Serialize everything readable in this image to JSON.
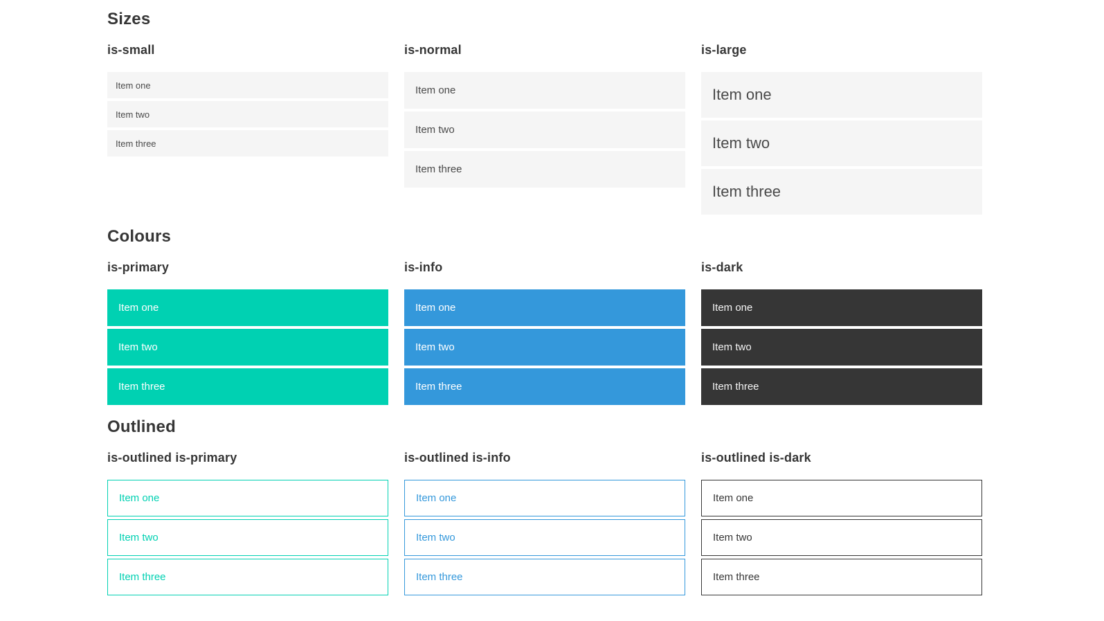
{
  "items": [
    "Item one",
    "Item two",
    "Item three"
  ],
  "sections": [
    {
      "title": "Sizes",
      "groups": [
        {
          "label": "is-small"
        },
        {
          "label": "is-normal"
        },
        {
          "label": "is-large"
        }
      ]
    },
    {
      "title": "Colours",
      "groups": [
        {
          "label": "is-primary"
        },
        {
          "label": "is-info"
        },
        {
          "label": "is-dark"
        }
      ]
    },
    {
      "title": "Outlined",
      "groups": [
        {
          "label": "is-outlined is-primary"
        },
        {
          "label": "is-outlined is-info"
        },
        {
          "label": "is-outlined is-dark"
        }
      ]
    }
  ],
  "colors": {
    "primary": "#00d1b2",
    "info": "#3498db",
    "dark": "#363636",
    "item_background": "#f5f5f5",
    "item_text": "#4a4a4a",
    "heading_text": "#363636",
    "colored_item_text": "#ffffff"
  }
}
